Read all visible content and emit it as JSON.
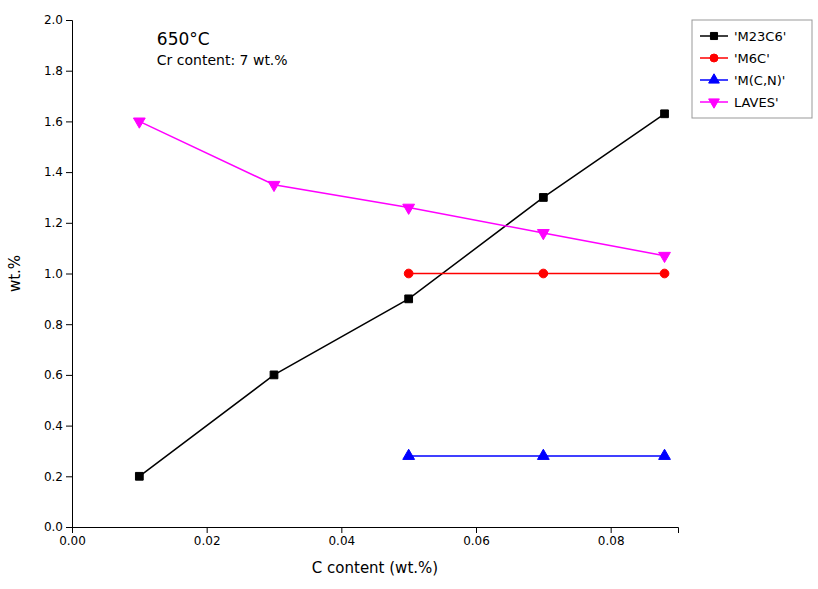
{
  "chart_data": {
    "type": "line",
    "annotations": [
      "650°C",
      "Cr content: 7 wt.%"
    ],
    "x_label": "C content (wt.%)",
    "y_label": "wt.%",
    "xlim": [
      0.0,
      0.09
    ],
    "ylim": [
      0.0,
      2.0
    ],
    "xticks": [
      {
        "value": 0.0,
        "label": "0.00"
      },
      {
        "value": 0.02,
        "label": "0.02"
      },
      {
        "value": 0.04,
        "label": "0.04"
      },
      {
        "value": 0.06,
        "label": "0.06"
      },
      {
        "value": 0.08,
        "label": "0.08"
      }
    ],
    "yticks": [
      {
        "value": 0.0,
        "label": "0.0"
      },
      0.2,
      0.4,
      0.6,
      0.8,
      {
        "value": 1.0,
        "label": "1.0"
      },
      1.2,
      1.4,
      1.6,
      1.8,
      {
        "value": 2.0,
        "label": "2.0"
      }
    ],
    "grid": false,
    "legend": "upper right",
    "series": [
      {
        "name": "'M23C6'",
        "color": "black",
        "marker": "square",
        "line_style": "solid",
        "x": [
          0.01,
          0.03,
          0.05,
          0.07,
          0.088
        ],
        "values": [
          0.2,
          0.6,
          0.9,
          1.3,
          1.63
        ]
      },
      {
        "name": "'M6C'",
        "color": "red",
        "marker": "circle",
        "line_style": "solid",
        "x": [
          0.05,
          0.07,
          0.088
        ],
        "values": [
          1.0,
          1.0,
          1.0
        ]
      },
      {
        "name": "'M(C,N)'",
        "color": "blue",
        "marker": "triangle-up",
        "line_style": "solid",
        "x": [
          0.05,
          0.07,
          0.088
        ],
        "values": [
          0.28,
          0.28,
          0.28
        ]
      },
      {
        "name": "LAVES'",
        "color": "magenta",
        "marker": "triangle-down",
        "line_style": "solid",
        "x": [
          0.01,
          0.03,
          0.05,
          0.07,
          0.088
        ],
        "values": [
          1.6,
          1.35,
          1.26,
          1.16,
          1.07
        ]
      }
    ]
  }
}
